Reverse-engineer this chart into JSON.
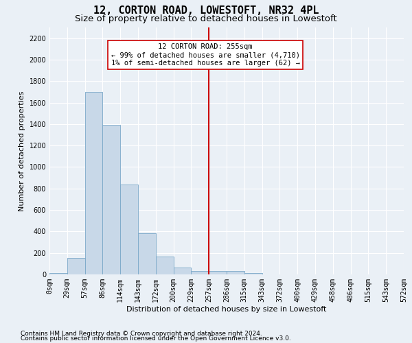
{
  "title": "12, CORTON ROAD, LOWESTOFT, NR32 4PL",
  "subtitle": "Size of property relative to detached houses in Lowestoft",
  "xlabel": "Distribution of detached houses by size in Lowestoft",
  "ylabel": "Number of detached properties",
  "footer_line1": "Contains HM Land Registry data © Crown copyright and database right 2024.",
  "footer_line2": "Contains public sector information licensed under the Open Government Licence v3.0.",
  "bin_labels": [
    "0sqm",
    "29sqm",
    "57sqm",
    "86sqm",
    "114sqm",
    "143sqm",
    "172sqm",
    "200sqm",
    "229sqm",
    "257sqm",
    "286sqm",
    "315sqm",
    "343sqm",
    "372sqm",
    "400sqm",
    "429sqm",
    "458sqm",
    "486sqm",
    "515sqm",
    "543sqm",
    "572sqm"
  ],
  "bar_values": [
    15,
    155,
    1700,
    1390,
    840,
    385,
    165,
    65,
    35,
    30,
    30,
    15,
    0,
    0,
    0,
    0,
    0,
    0,
    0,
    0
  ],
  "bar_color": "#c8d8e8",
  "bar_edge_color": "#7aa8c8",
  "vline_x_index": 9,
  "vline_color": "#cc0000",
  "annotation_text": "12 CORTON ROAD: 255sqm\n← 99% of detached houses are smaller (4,710)\n1% of semi-detached houses are larger (62) →",
  "annotation_box_color": "#ffffff",
  "annotation_box_edge_color": "#cc0000",
  "ylim": [
    0,
    2300
  ],
  "yticks": [
    0,
    200,
    400,
    600,
    800,
    1000,
    1200,
    1400,
    1600,
    1800,
    2000,
    2200
  ],
  "background_color": "#eaf0f6",
  "grid_color": "#ffffff",
  "title_fontsize": 11,
  "subtitle_fontsize": 9.5,
  "axis_label_fontsize": 8,
  "tick_fontsize": 7,
  "annotation_fontsize": 7.5,
  "footer_fontsize": 6.5
}
